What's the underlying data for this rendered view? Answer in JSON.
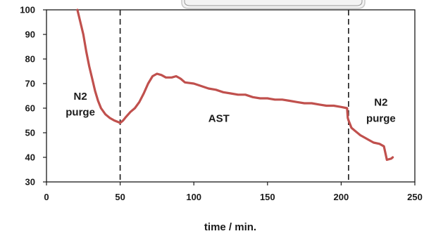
{
  "chart_data": {
    "type": "line",
    "title": "",
    "xlabel": "time / min.",
    "ylabel": "",
    "xlim": [
      0,
      250
    ],
    "ylim": [
      30,
      100
    ],
    "xticks": [
      0,
      50,
      100,
      150,
      200,
      250
    ],
    "yticks": [
      30,
      40,
      50,
      60,
      70,
      80,
      90,
      100
    ],
    "grid": false,
    "series": [
      {
        "color": "#c0504d",
        "points": [
          [
            21,
            100
          ],
          [
            23,
            95
          ],
          [
            25,
            90
          ],
          [
            27,
            83
          ],
          [
            29,
            77
          ],
          [
            31,
            72
          ],
          [
            33,
            67
          ],
          [
            35,
            63
          ],
          [
            37,
            60
          ],
          [
            40,
            57.5
          ],
          [
            43,
            56
          ],
          [
            46,
            55
          ],
          [
            49,
            54.3
          ],
          [
            50,
            54
          ],
          [
            52,
            55
          ],
          [
            54,
            56.5
          ],
          [
            57,
            58.5
          ],
          [
            60,
            60
          ],
          [
            63,
            62.5
          ],
          [
            66,
            66
          ],
          [
            69,
            70
          ],
          [
            72,
            73
          ],
          [
            75,
            74
          ],
          [
            78,
            73.5
          ],
          [
            81,
            72.5
          ],
          [
            85,
            72.5
          ],
          [
            88,
            73
          ],
          [
            91,
            72
          ],
          [
            94,
            70.5
          ],
          [
            100,
            70
          ],
          [
            105,
            69
          ],
          [
            110,
            68
          ],
          [
            115,
            67.5
          ],
          [
            120,
            66.5
          ],
          [
            125,
            66
          ],
          [
            130,
            65.5
          ],
          [
            135,
            65.5
          ],
          [
            140,
            64.5
          ],
          [
            145,
            64
          ],
          [
            150,
            64
          ],
          [
            155,
            63.5
          ],
          [
            160,
            63.5
          ],
          [
            165,
            63
          ],
          [
            170,
            62.5
          ],
          [
            175,
            62
          ],
          [
            180,
            62
          ],
          [
            185,
            61.5
          ],
          [
            190,
            61
          ],
          [
            195,
            61
          ],
          [
            200,
            60.5
          ],
          [
            204,
            60
          ],
          [
            204.5,
            56
          ],
          [
            205,
            55
          ],
          [
            207,
            52
          ],
          [
            210,
            50.5
          ],
          [
            213,
            49
          ],
          [
            216,
            48
          ],
          [
            219,
            47
          ],
          [
            222,
            46
          ],
          [
            226,
            45.5
          ],
          [
            229,
            44.5
          ],
          [
            231,
            39
          ],
          [
            234,
            39.5
          ],
          [
            235,
            40
          ]
        ]
      }
    ],
    "vlines": [
      50,
      205
    ],
    "annotations": [
      {
        "lines": [
          "N2",
          "purge"
        ],
        "x": 23,
        "y": [
          63.5,
          57
        ]
      },
      {
        "lines": [
          "AST"
        ],
        "x": 117,
        "y": [
          54.5
        ]
      },
      {
        "lines": [
          "N2",
          "purge"
        ],
        "x": 227,
        "y": [
          61,
          54.5
        ]
      }
    ]
  }
}
